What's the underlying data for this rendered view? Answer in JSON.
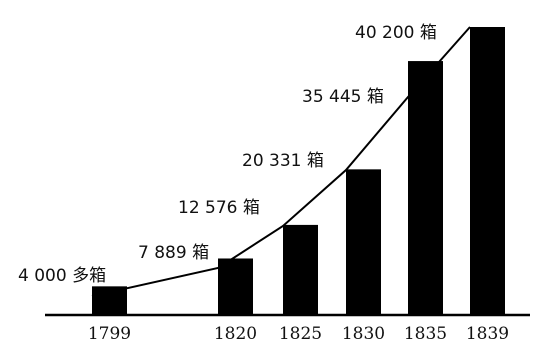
{
  "chart_data": {
    "type": "bar",
    "categories": [
      "1799",
      "1820",
      "1825",
      "1830",
      "1835",
      "1839"
    ],
    "values": [
      4000,
      7889,
      12576,
      20331,
      35445,
      40200
    ],
    "data_labels": [
      "4 000 多箱",
      "7 889 箱",
      "12 576 箱",
      "20 331 箱",
      "35 445 箱",
      "40 200 箱"
    ],
    "trend_line": true,
    "grid": false,
    "legend": "none",
    "ylim": [
      0,
      40200
    ],
    "bar_color": "#000000",
    "line_color": "#000000"
  }
}
